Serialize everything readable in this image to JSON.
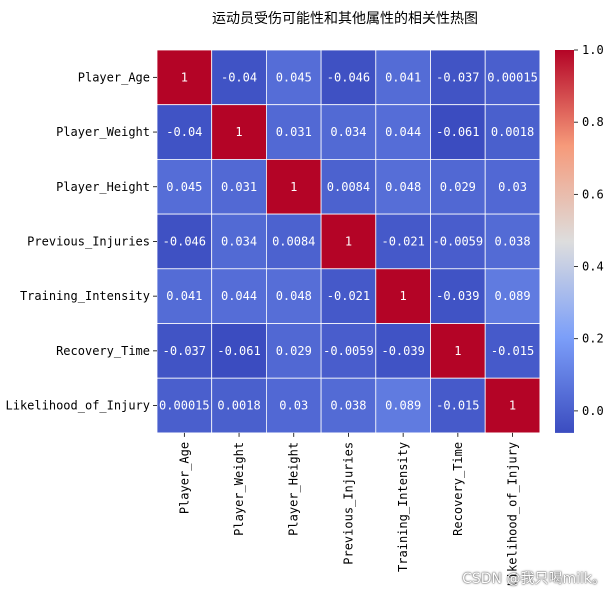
{
  "chart_data": {
    "type": "heatmap",
    "title": "运动员受伤可能性和其他属性的相关性热图",
    "rows": [
      "Player_Age",
      "Player_Weight",
      "Player_Height",
      "Previous_Injuries",
      "Training_Intensity",
      "Recovery_Time",
      "Likelihood_of_Injury"
    ],
    "columns": [
      "Player_Age",
      "Player_Weight",
      "Player_Height",
      "Previous_Injuries",
      "Training_Intensity",
      "Recovery_Time",
      "Likelihood_of_Injury"
    ],
    "values": [
      [
        1,
        -0.04,
        0.045,
        -0.046,
        0.041,
        -0.037,
        0.00015
      ],
      [
        -0.04,
        1,
        0.031,
        0.034,
        0.044,
        -0.061,
        0.0018
      ],
      [
        0.045,
        0.031,
        1,
        0.0084,
        0.048,
        0.029,
        0.03
      ],
      [
        -0.046,
        0.034,
        0.0084,
        1,
        -0.021,
        -0.0059,
        0.038
      ],
      [
        0.041,
        0.044,
        0.048,
        -0.021,
        1,
        -0.039,
        0.089
      ],
      [
        -0.037,
        -0.061,
        0.029,
        -0.0059,
        -0.039,
        1,
        -0.015
      ],
      [
        0.00015,
        0.0018,
        0.03,
        0.038,
        0.089,
        -0.015,
        1
      ]
    ],
    "cell_labels": [
      [
        "1",
        "-0.04",
        "0.045",
        "-0.046",
        "0.041",
        "-0.037",
        "0.00015"
      ],
      [
        "-0.04",
        "1",
        "0.031",
        "0.034",
        "0.044",
        "-0.061",
        "0.0018"
      ],
      [
        "0.045",
        "0.031",
        "1",
        "0.0084",
        "0.048",
        "0.029",
        "0.03"
      ],
      [
        "-0.046",
        "0.034",
        "0.0084",
        "1",
        "-0.021",
        "-0.0059",
        "0.038"
      ],
      [
        "0.041",
        "0.044",
        "0.048",
        "-0.021",
        "1",
        "-0.039",
        "0.089"
      ],
      [
        "-0.037",
        "-0.061",
        "0.029",
        "-0.0059",
        "-0.039",
        "1",
        "-0.015"
      ],
      [
        "0.00015",
        "0.0018",
        "0.03",
        "0.038",
        "0.089",
        "-0.015",
        "1"
      ]
    ],
    "colormap": "coolwarm",
    "vmin": -0.061,
    "vmax": 1,
    "colorbar_ticks": [
      "0.0",
      "0.2",
      "0.4",
      "0.6",
      "0.8",
      "1.0"
    ],
    "colorbar_tick_values": [
      0,
      0.2,
      0.4,
      0.6,
      0.8,
      1.0
    ],
    "annotated": true,
    "grid_lines": true
  },
  "watermark": "CSDN @我只喝milk。"
}
